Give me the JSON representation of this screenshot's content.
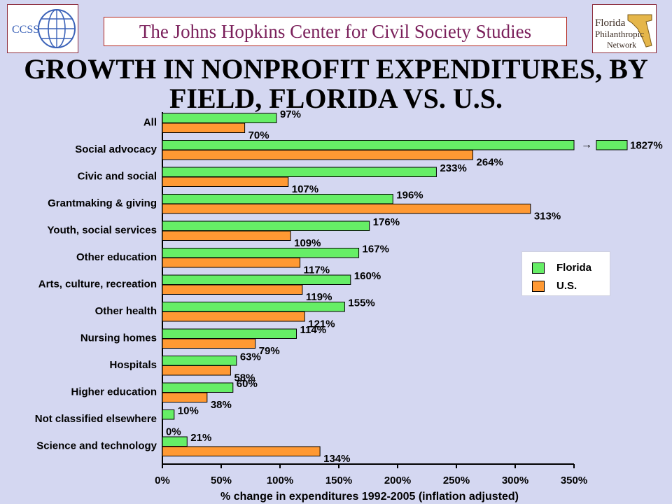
{
  "header": {
    "banner": "The Johns Hopkins Center for Civil Society Studies",
    "logo_left_text": "CCSS",
    "logo_right_text": [
      "Florida",
      "Philanthropic",
      "Network"
    ]
  },
  "colors": {
    "florida": "#66ee66",
    "us": "#ff9933",
    "background": "#d4d7f1"
  },
  "chart_data": {
    "type": "bar",
    "orientation": "horizontal",
    "title": "GROWTH IN NONPROFIT EXPENDITURES, BY FIELD, FLORIDA VS. U.S.",
    "title_lines": [
      "GROWTH IN NONPROFIT EXPENDITURES, BY",
      "FIELD, FLORIDA VS. U.S."
    ],
    "xlabel": "% change in expenditures 1992-2005 (inflation adjusted)",
    "ylabel": "",
    "xlim": [
      0,
      350
    ],
    "xticks": [
      0,
      50,
      100,
      150,
      200,
      250,
      300,
      350
    ],
    "xtick_labels": [
      "0%",
      "50%",
      "100%",
      "150%",
      "200%",
      "250%",
      "300%",
      "350%"
    ],
    "categories": [
      "All",
      "Social advocacy",
      "Civic and social",
      "Grantmaking & giving",
      "Youth, social services",
      "Other education",
      "Arts, culture, recreation",
      "Other health",
      "Nursing homes",
      "Hospitals",
      "Higher education",
      "Not classified elsewhere",
      "Science and technology"
    ],
    "series": [
      {
        "name": "Florida",
        "values": [
          97,
          1827,
          233,
          196,
          176,
          167,
          160,
          155,
          114,
          63,
          60,
          10,
          21
        ],
        "labels": [
          "97%",
          "1827%",
          "233%",
          "196%",
          "176%",
          "167%",
          "160%",
          "155%",
          "114%",
          "63%",
          "60%",
          "10%",
          "21%"
        ]
      },
      {
        "name": "U.S.",
        "values": [
          70,
          264,
          107,
          313,
          109,
          117,
          119,
          121,
          79,
          58,
          38,
          0,
          134
        ],
        "labels": [
          "70%",
          "264%",
          "107%",
          "313%",
          "109%",
          "117%",
          "119%",
          "121%",
          "79%",
          "58%",
          "38%",
          "0%",
          "134%"
        ]
      }
    ],
    "axis_break": {
      "category": "Social advocacy",
      "series": "Florida",
      "marker": "→"
    },
    "legend_position": "right",
    "grid": false
  }
}
